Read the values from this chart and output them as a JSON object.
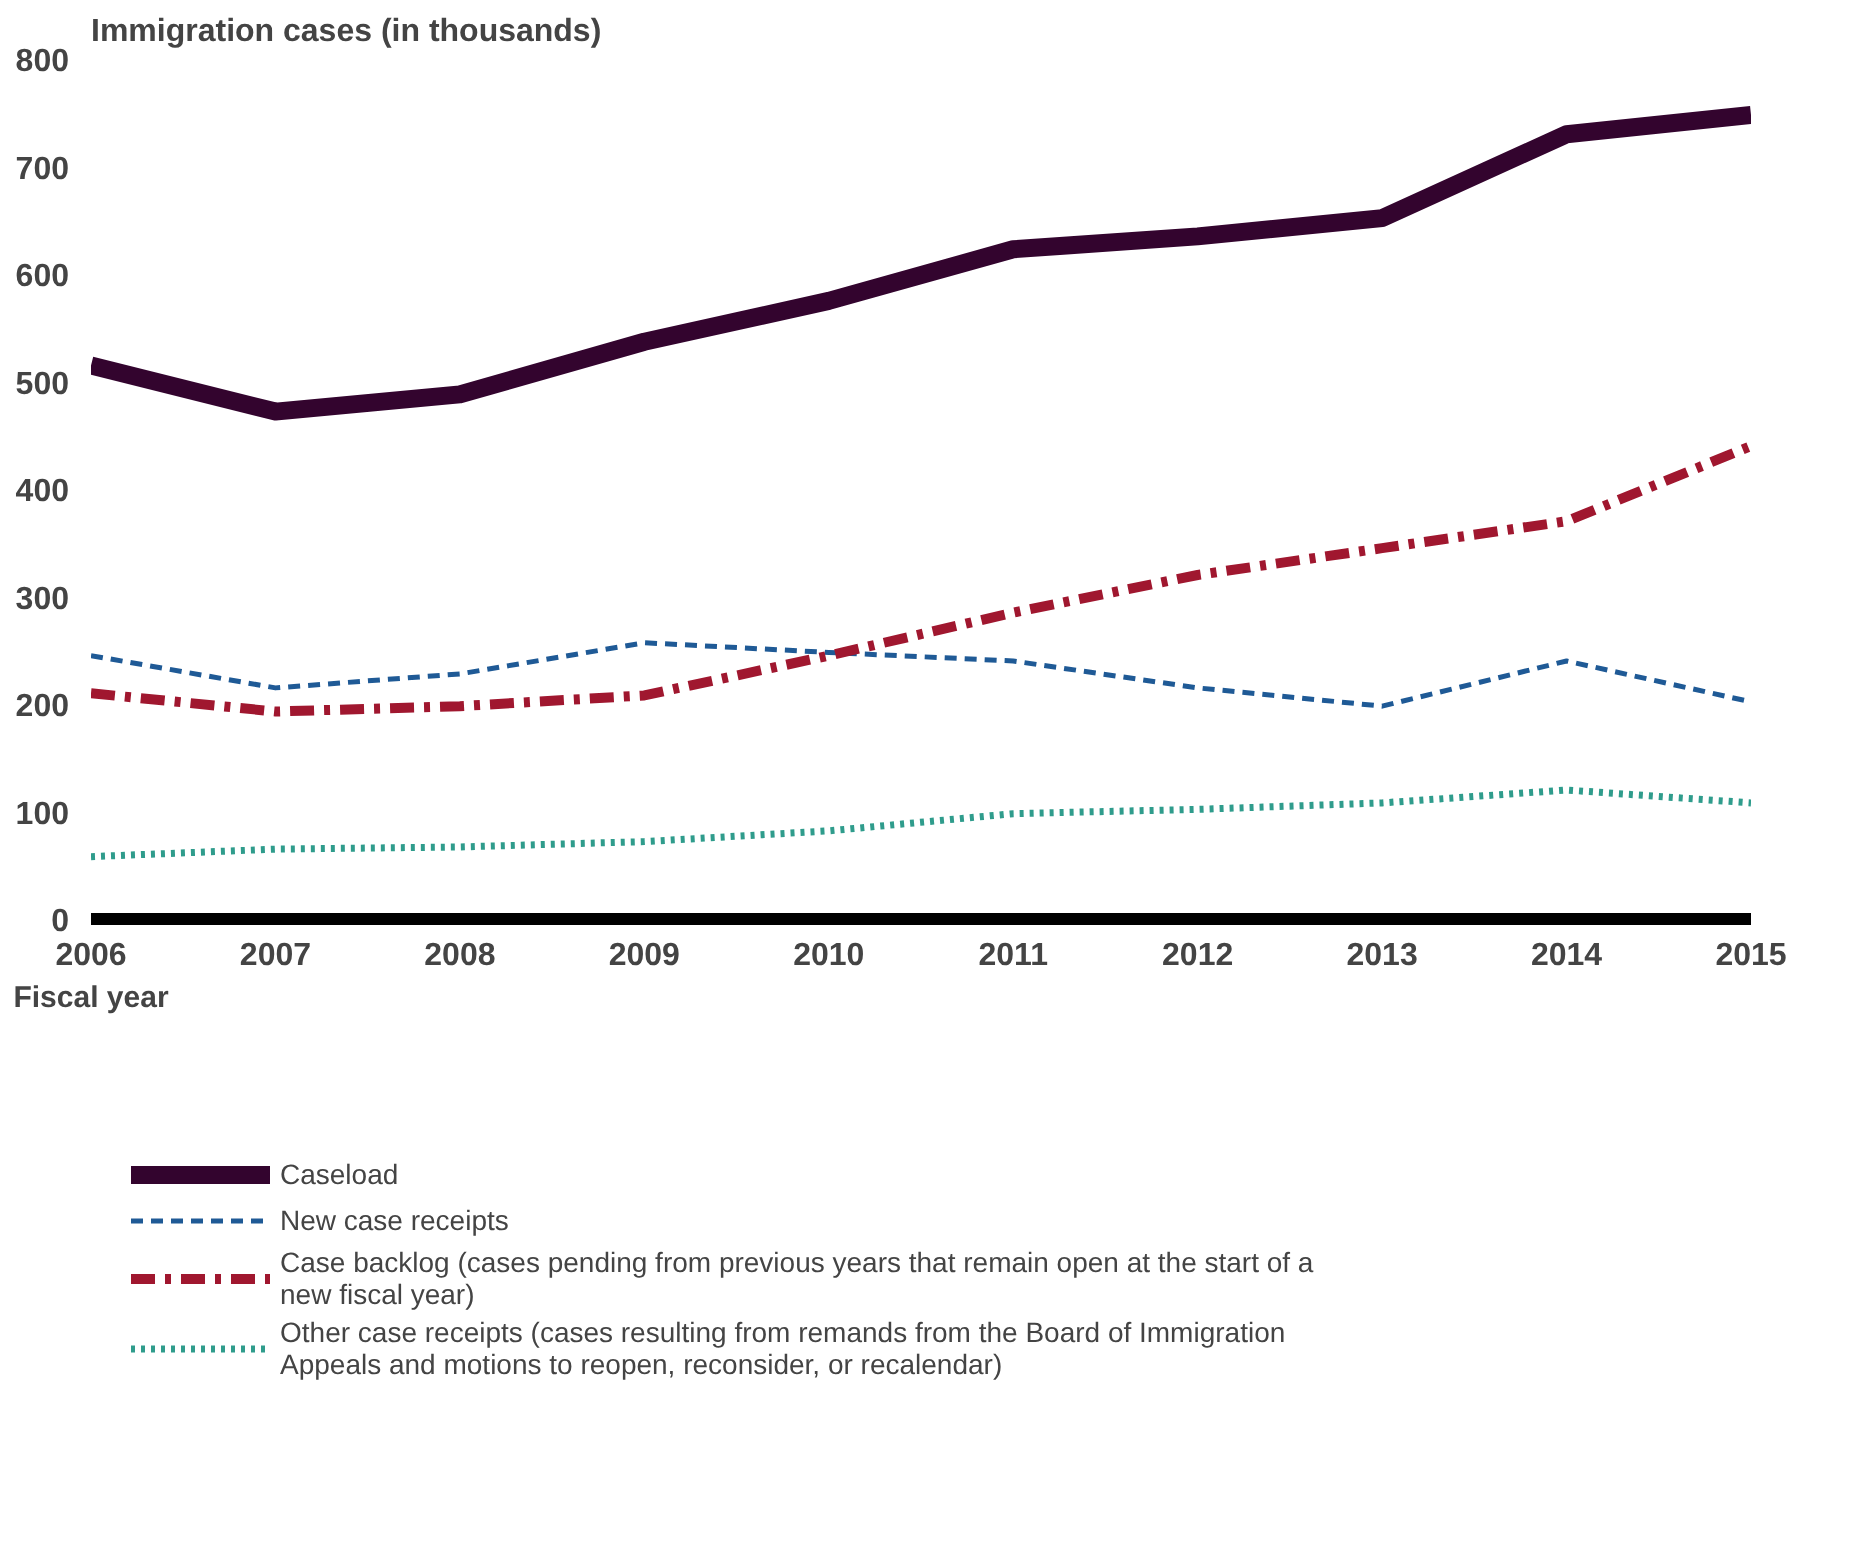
{
  "chart_data": {
    "type": "line",
    "title": "Immigration cases (in thousands)",
    "xlabel": "Fiscal year",
    "x": [
      2006,
      2007,
      2008,
      2009,
      2010,
      2011,
      2012,
      2013,
      2014,
      2015
    ],
    "xlim": [
      2006,
      2015
    ],
    "xticks": [
      2006,
      2007,
      2008,
      2009,
      2010,
      2011,
      2012,
      2013,
      2014,
      2015
    ],
    "ylim": [
      0,
      800
    ],
    "yticks": [
      0,
      100,
      200,
      300,
      400,
      500,
      600,
      700,
      800
    ],
    "grid": false,
    "legend": "bottom",
    "marker": "none",
    "series": [
      {
        "name": "Caseload",
        "color": "#33042e",
        "line_style": "solid",
        "values": [
          515,
          472,
          488,
          537,
          575,
          623,
          635,
          652,
          730,
          748
        ]
      },
      {
        "name": "New case receipts",
        "color": "#1f5a96",
        "line_style": "dashed",
        "values": [
          245,
          215,
          228,
          257,
          248,
          240,
          215,
          198,
          240,
          202
        ]
      },
      {
        "name": "Case backlog (cases pending from previous years that remain open at the start of a new fiscal year)",
        "color": "#a0172f",
        "line_style": "dashdot",
        "values": [
          210,
          193,
          198,
          208,
          245,
          285,
          320,
          345,
          370,
          440
        ]
      },
      {
        "name": "Other case receipts (cases resulting from remands from the Board of Immigration Appeals and motions to reopen, reconsider, or recalendar)",
        "color": "#2f9c8c",
        "line_style": "dotted",
        "values": [
          58,
          65,
          67,
          72,
          82,
          98,
          102,
          108,
          120,
          108
        ]
      }
    ]
  }
}
